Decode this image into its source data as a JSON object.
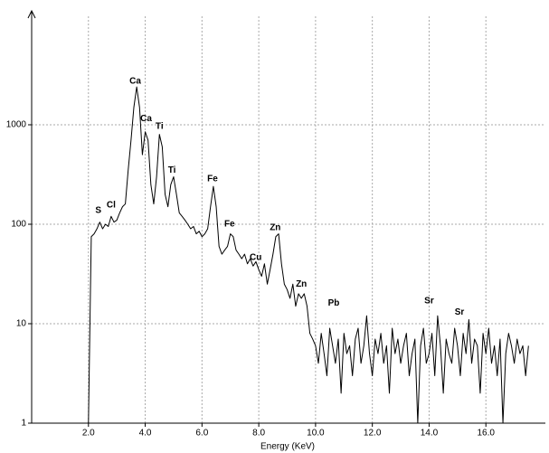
{
  "chart_data": {
    "type": "line",
    "xlabel": "Energy (KeV)",
    "log_y": true,
    "grid": true,
    "xlim": [
      0,
      18
    ],
    "ylim": [
      1,
      10000
    ],
    "xticks": [
      {
        "value": 2,
        "label": "2.0"
      },
      {
        "value": 4,
        "label": "4.0"
      },
      {
        "value": 6,
        "label": "6.0"
      },
      {
        "value": 8,
        "label": "8.0"
      },
      {
        "value": 10,
        "label": "10.0"
      },
      {
        "value": 12,
        "label": "12.0"
      },
      {
        "value": 14,
        "label": "14.0"
      },
      {
        "value": 16,
        "label": "16.0"
      }
    ],
    "yticks": [
      1,
      10,
      100,
      1000
    ],
    "x": [
      2,
      2.1,
      2.2,
      2.3,
      2.4,
      2.5,
      2.6,
      2.7,
      2.8,
      2.9,
      3,
      3.1,
      3.2,
      3.3,
      3.4,
      3.5,
      3.6,
      3.7,
      3.8,
      3.9,
      4,
      4.1,
      4.2,
      4.3,
      4.4,
      4.5,
      4.6,
      4.7,
      4.8,
      4.9,
      5,
      5.1,
      5.2,
      5.3,
      5.4,
      5.5,
      5.6,
      5.7,
      5.8,
      5.9,
      6,
      6.1,
      6.2,
      6.3,
      6.4,
      6.5,
      6.6,
      6.7,
      6.8,
      6.9,
      7,
      7.1,
      7.2,
      7.3,
      7.4,
      7.5,
      7.6,
      7.7,
      7.8,
      7.9,
      8,
      8.1,
      8.2,
      8.3,
      8.4,
      8.5,
      8.6,
      8.7,
      8.8,
      8.9,
      9,
      9.1,
      9.2,
      9.3,
      9.4,
      9.5,
      9.6,
      9.7,
      9.8,
      9.9,
      10,
      10.1,
      10.2,
      10.3,
      10.4,
      10.5,
      10.6,
      10.7,
      10.8,
      10.9,
      11,
      11.1,
      11.2,
      11.3,
      11.4,
      11.5,
      11.6,
      11.7,
      11.8,
      11.9,
      12,
      12.1,
      12.2,
      12.3,
      12.4,
      12.5,
      12.6,
      12.7,
      12.8,
      12.9,
      13,
      13.1,
      13.2,
      13.3,
      13.4,
      13.5,
      13.6,
      13.7,
      13.8,
      13.9,
      14,
      14.1,
      14.2,
      14.3,
      14.4,
      14.5,
      14.6,
      14.7,
      14.8,
      14.9,
      15,
      15.1,
      15.2,
      15.3,
      15.4,
      15.5,
      15.6,
      15.7,
      15.8,
      15.9,
      16,
      16.1,
      16.2,
      16.3,
      16.4,
      16.5,
      16.6,
      16.7,
      16.8,
      16.9,
      17,
      17.1,
      17.2,
      17.3,
      17.4,
      17.5
    ],
    "series": [
      {
        "color": "#000000",
        "values": [
          1,
          75,
          80,
          90,
          105,
          90,
          100,
          95,
          120,
          105,
          110,
          130,
          150,
          160,
          350,
          700,
          1500,
          2400,
          1500,
          500,
          850,
          700,
          250,
          160,
          300,
          800,
          600,
          200,
          150,
          250,
          300,
          200,
          130,
          120,
          110,
          100,
          90,
          95,
          80,
          85,
          75,
          80,
          90,
          150,
          240,
          150,
          60,
          50,
          55,
          60,
          80,
          75,
          55,
          50,
          45,
          50,
          40,
          45,
          38,
          42,
          35,
          30,
          40,
          25,
          35,
          50,
          75,
          80,
          40,
          25,
          22,
          18,
          25,
          15,
          20,
          18,
          20,
          15,
          8,
          7,
          6,
          4,
          8,
          5,
          3,
          9,
          6,
          4,
          7,
          2,
          8,
          5,
          6,
          3,
          7,
          9,
          4,
          6,
          12,
          5,
          3,
          7,
          5,
          8,
          4,
          6,
          2,
          9,
          5,
          7,
          4,
          6,
          8,
          3,
          5,
          7,
          1,
          6,
          9,
          4,
          5,
          8,
          3,
          12,
          6,
          2,
          7,
          5,
          4,
          9,
          6,
          3,
          8,
          5,
          11,
          4,
          7,
          6,
          2,
          8,
          5,
          9,
          4,
          6,
          3,
          7,
          1,
          5,
          8,
          6,
          4,
          7,
          5,
          6,
          3,
          6
        ]
      }
    ],
    "annotations": [
      {
        "text": "S",
        "x": 2.35,
        "y": 137
      },
      {
        "text": "Cl",
        "x": 2.8,
        "y": 155
      },
      {
        "text": "Ca",
        "x": 3.65,
        "y": 2750
      },
      {
        "text": "Ca",
        "x": 4.03,
        "y": 1150
      },
      {
        "text": "Ti",
        "x": 4.5,
        "y": 960
      },
      {
        "text": "Ti",
        "x": 4.94,
        "y": 350
      },
      {
        "text": "Fe",
        "x": 6.37,
        "y": 285
      },
      {
        "text": "Fe",
        "x": 6.97,
        "y": 100
      },
      {
        "text": "Cu",
        "x": 7.89,
        "y": 46
      },
      {
        "text": "Zn",
        "x": 8.58,
        "y": 92
      },
      {
        "text": "Zn",
        "x": 9.5,
        "y": 25
      },
      {
        "text": "Pb",
        "x": 10.64,
        "y": 16
      },
      {
        "text": "Sr",
        "x": 14.0,
        "y": 17
      },
      {
        "text": "Sr",
        "x": 15.07,
        "y": 13
      }
    ]
  }
}
